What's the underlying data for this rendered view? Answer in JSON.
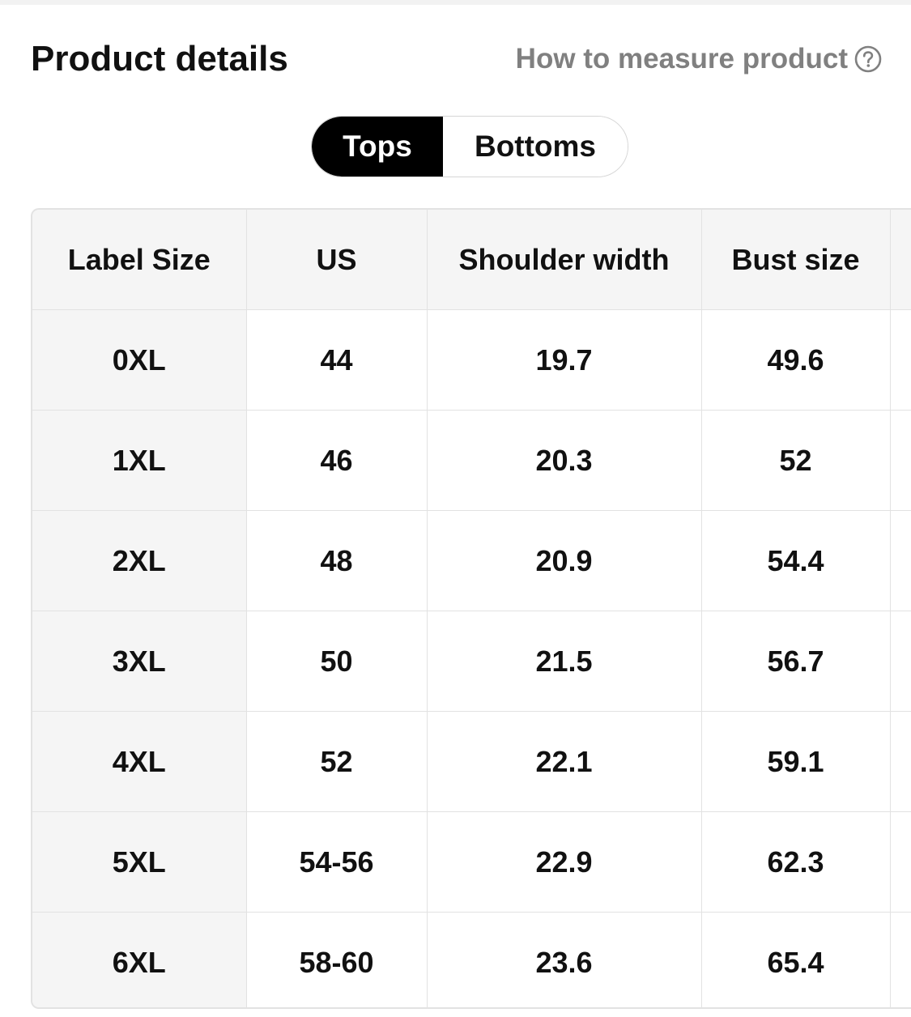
{
  "header": {
    "title": "Product details",
    "measure_link": "How to measure product",
    "help_icon": "question-circle-icon"
  },
  "tabs": [
    {
      "label": "Tops",
      "active": true
    },
    {
      "label": "Bottoms",
      "active": false
    }
  ],
  "size_table": {
    "columns": [
      "Label Size",
      "US",
      "Shoulder width",
      "Bust size",
      ""
    ],
    "rows": [
      [
        "0XL",
        "44",
        "19.7",
        "49.6",
        ""
      ],
      [
        "1XL",
        "46",
        "20.3",
        "52",
        ""
      ],
      [
        "2XL",
        "48",
        "20.9",
        "54.4",
        ""
      ],
      [
        "3XL",
        "50",
        "21.5",
        "56.7",
        ""
      ],
      [
        "4XL",
        "52",
        "22.1",
        "59.1",
        ""
      ],
      [
        "5XL",
        "54-56",
        "22.9",
        "62.3",
        ""
      ],
      [
        "6XL",
        "58-60",
        "23.6",
        "65.4",
        ""
      ]
    ]
  },
  "colors": {
    "active_tab_bg": "#000000",
    "header_bg": "#f5f5f5",
    "border": "#e2e2e2",
    "link_gray": "#808080"
  }
}
